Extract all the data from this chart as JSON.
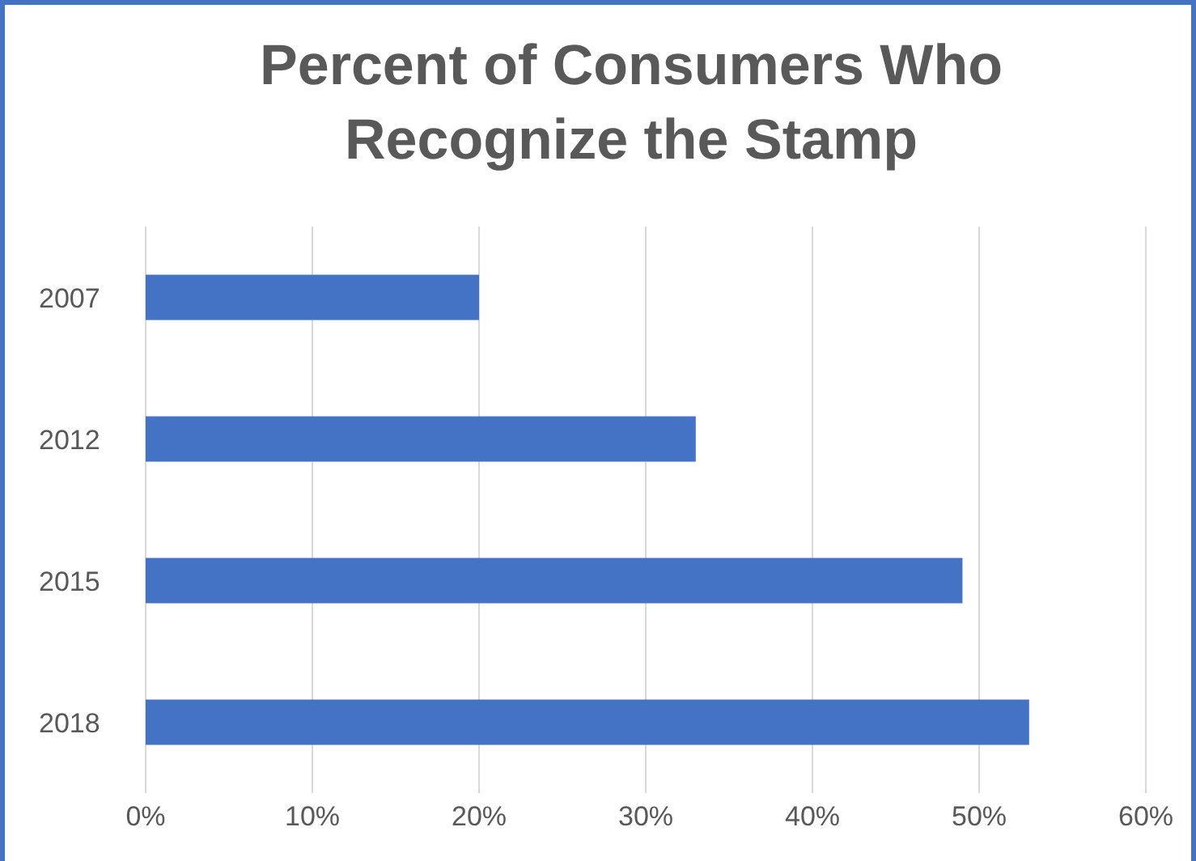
{
  "chart_data": {
    "type": "bar",
    "orientation": "horizontal",
    "title": "Percent of Consumers Who Recognize the Stamp",
    "categories": [
      "2007",
      "2012",
      "2015",
      "2018"
    ],
    "values": [
      20,
      33,
      49,
      53
    ],
    "color": "#4472c4",
    "xlim": [
      0,
      60
    ],
    "xticks": [
      {
        "value": 0,
        "label": "0%"
      },
      {
        "value": 10,
        "label": "10%"
      },
      {
        "value": 20,
        "label": "20%"
      },
      {
        "value": 30,
        "label": "30%"
      },
      {
        "value": 40,
        "label": "40%"
      },
      {
        "value": 50,
        "label": "50%"
      },
      {
        "value": 60,
        "label": "60%"
      }
    ],
    "grid": "x"
  }
}
